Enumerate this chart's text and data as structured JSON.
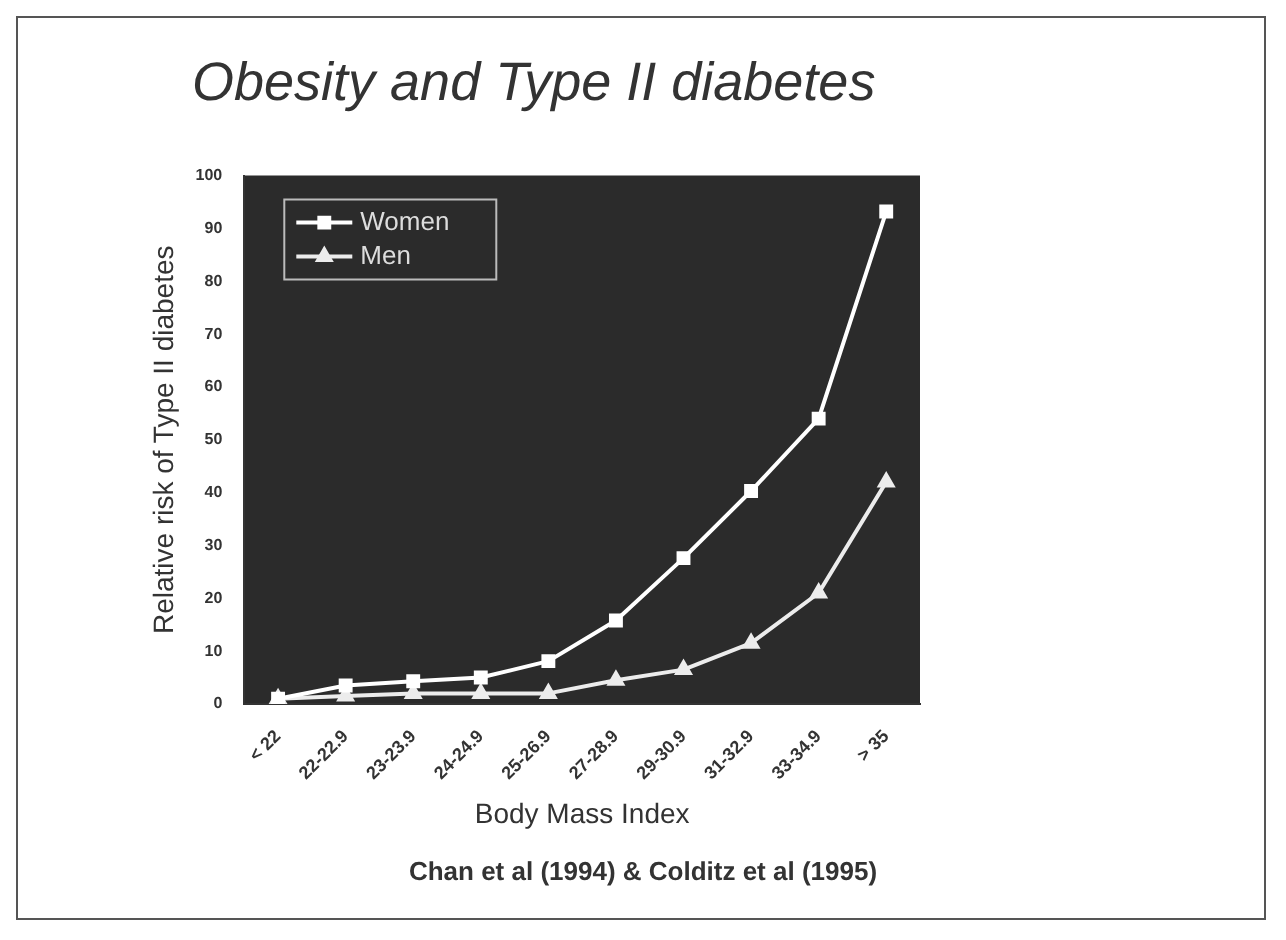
{
  "chart_data": {
    "type": "line",
    "title": "Obesity and Type II diabetes",
    "xlabel": "Body Mass Index",
    "ylabel": "Relative risk of Type II diabetes",
    "categories": [
      "< 22",
      "22-22.9",
      "23-23.9",
      "24-24.9",
      "25-26.9",
      "27-28.9",
      "29-30.9",
      "31-32.9",
      "33-34.9",
      "> 35"
    ],
    "series": [
      {
        "name": "Women",
        "color": "#ffffff",
        "marker": "square",
        "values": [
          1,
          3.5,
          4.3,
          5,
          8.1,
          15.8,
          27.6,
          40.3,
          54,
          93.2
        ]
      },
      {
        "name": "Men",
        "color": "#ececec",
        "marker": "triangle",
        "values": [
          1,
          1.5,
          2,
          2,
          2,
          4.5,
          6.5,
          11.5,
          21,
          42
        ]
      }
    ],
    "ylim": [
      0,
      100
    ],
    "yticks": [
      0,
      10,
      20,
      30,
      40,
      50,
      60,
      70,
      80,
      90,
      100
    ],
    "grid": false,
    "legend": "top left",
    "line_style": "solid",
    "annotations": [
      "Chan et al (1994) & Colditz et al (1995)"
    ]
  }
}
